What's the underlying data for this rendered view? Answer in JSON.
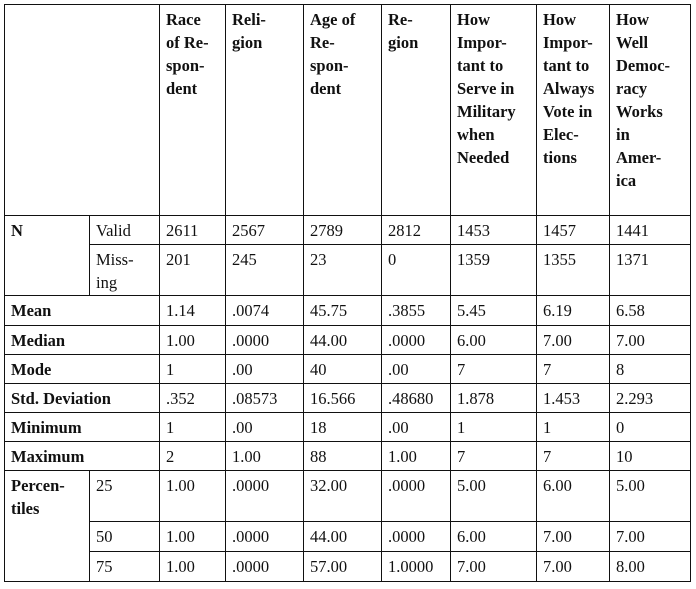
{
  "headers": [
    "Race\nof Re-\nspon-\ndent",
    "Reli-\ngion",
    "Age of\nRe-\nspon-\ndent",
    "Re-\ngion",
    "How\nImpor-\ntant to\nServe in\nMilitary\nwhen\nNeeded",
    "How\nImpor-\ntant to\nAlways\nVote in\nElec-\ntions",
    "How\nWell\nDemoc-\nracy\nWorks\nin\nAmer-\nica"
  ],
  "n_label": "N",
  "valid_label": "Valid",
  "missing_label": "Miss-\ning",
  "valid": [
    "2611",
    "2567",
    "2789",
    "2812",
    "1453",
    "1457",
    "1441"
  ],
  "missing": [
    "201",
    "245",
    "23",
    "0",
    "1359",
    "1355",
    "1371"
  ],
  "stats": [
    {
      "label": "Mean",
      "values": [
        "1.14",
        ".0074",
        "45.75",
        ".3855",
        "5.45",
        "6.19",
        "6.58"
      ]
    },
    {
      "label": "Median",
      "values": [
        "1.00",
        ".0000",
        "44.00",
        ".0000",
        "6.00",
        "7.00",
        "7.00"
      ]
    },
    {
      "label": "Mode",
      "values": [
        "1",
        ".00",
        "40",
        ".00",
        "7",
        "7",
        "8"
      ]
    },
    {
      "label": "Std. Deviation",
      "values": [
        ".352",
        ".08573",
        "16.566",
        ".48680",
        "1.878",
        "1.453",
        "2.293"
      ]
    },
    {
      "label": "Minimum",
      "values": [
        "1",
        ".00",
        "18",
        ".00",
        "1",
        "1",
        "0"
      ]
    },
    {
      "label": "Maximum",
      "values": [
        "2",
        "1.00",
        "88",
        "1.00",
        "7",
        "7",
        "10"
      ]
    }
  ],
  "percentiles_label": "Percen-\ntiles",
  "percentiles": [
    {
      "p": "25",
      "values": [
        "1.00",
        ".0000",
        "32.00",
        ".0000",
        "5.00",
        "6.00",
        "5.00"
      ]
    },
    {
      "p": "50",
      "values": [
        "1.00",
        ".0000",
        "44.00",
        ".0000",
        "6.00",
        "7.00",
        "7.00"
      ]
    },
    {
      "p": "75",
      "values": [
        "1.00",
        ".0000",
        "57.00",
        "1.0000",
        "7.00",
        "7.00",
        "8.00"
      ]
    }
  ]
}
